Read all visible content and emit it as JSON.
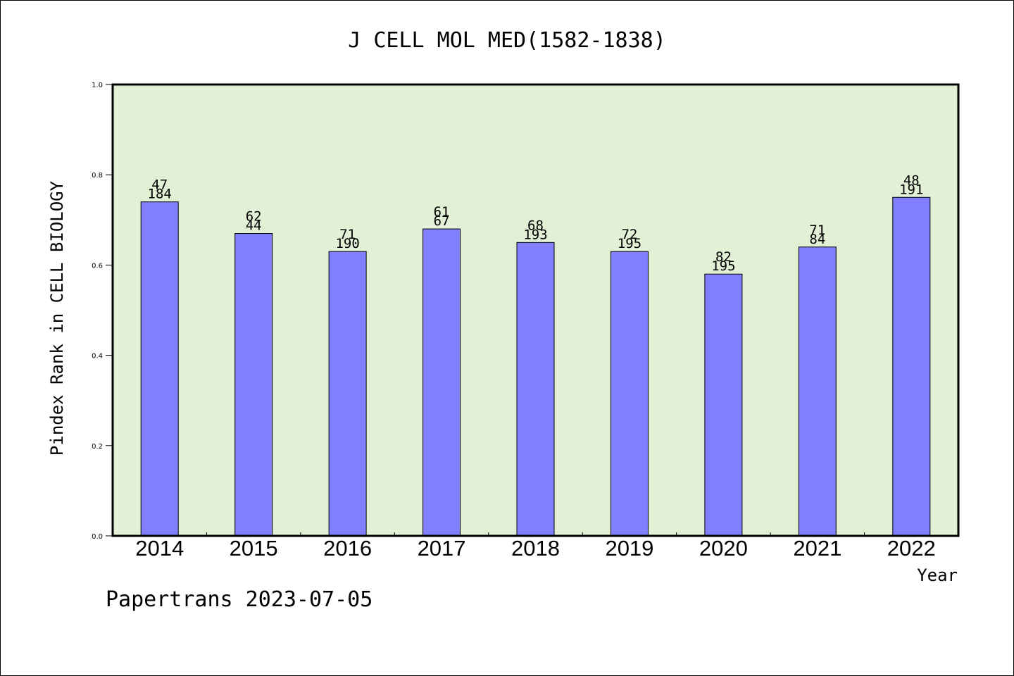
{
  "chart_data": {
    "type": "bar",
    "title": "J CELL MOL MED(1582-1838)",
    "xlabel": "Year",
    "ylabel": "Pindex Rank in CELL BIOLOGY",
    "ylim": [
      0,
      1.0
    ],
    "yticks": [
      "0.0",
      "0.2",
      "0.4",
      "0.6",
      "0.8",
      "1.0"
    ],
    "categories": [
      "2014",
      "2015",
      "2016",
      "2017",
      "2018",
      "2019",
      "2020",
      "2021",
      "2022"
    ],
    "values": [
      0.74,
      0.67,
      0.63,
      0.68,
      0.65,
      0.63,
      0.58,
      0.64,
      0.75
    ],
    "labels_top": [
      "47",
      "62",
      "71",
      "61",
      "68",
      "72",
      "82",
      "71",
      "48"
    ],
    "labels_bottom": [
      "184",
      "44",
      "190",
      "67",
      "193",
      "195",
      "195",
      "84",
      "191"
    ],
    "grid": false,
    "colors": {
      "plot_background": "#e2f0d6",
      "bar_fill": "#8080ff",
      "bar_stroke": "#000000"
    }
  },
  "footer": {
    "credit": "Papertrans 2023-07-05"
  }
}
